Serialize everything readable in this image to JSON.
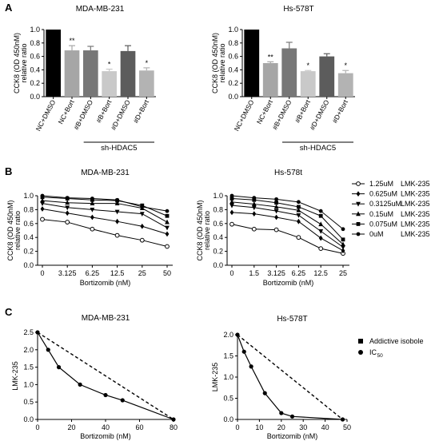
{
  "panel_letters": {
    "a": "A",
    "b": "B",
    "c": "C"
  },
  "chart_data": [
    {
      "id": "A1",
      "type": "bar",
      "title": "MDA-MB-231",
      "ylabel": "CCK8 (OD 450nM)",
      "ylabel2": "relative ratio",
      "ylim": [
        0,
        1.0
      ],
      "yticks": [
        "0.0",
        "0.2",
        "0.4",
        "0.6",
        "0.8",
        "1.0"
      ],
      "categories": [
        "NC+DMSO",
        "NC+Bort",
        "#B+DMSO",
        "#B+Bort",
        "#D+DMSO",
        "#D+Bort"
      ],
      "values": [
        1.0,
        0.69,
        0.69,
        0.38,
        0.68,
        0.39
      ],
      "errors": [
        0,
        0.07,
        0.06,
        0.03,
        0.08,
        0.04
      ],
      "significance": [
        "",
        "**",
        "",
        "*",
        "",
        "*"
      ],
      "bar_colors": [
        "#000000",
        "#a6a6a6",
        "#777777",
        "#c9c9c9",
        "#5c5c5c",
        "#b3b3b3"
      ],
      "group_label": "sh-HDAC5"
    },
    {
      "id": "A2",
      "type": "bar",
      "title": "Hs-578T",
      "ylabel": "CCK8 (OD 450nM)",
      "ylabel2": "relative ratio",
      "ylim": [
        0,
        1.0
      ],
      "yticks": [
        "0.0",
        "0.2",
        "0.4",
        "0.6",
        "0.8",
        "1.0"
      ],
      "categories": [
        "NC+DMSO",
        "NC+Bort",
        "#B+DMSO",
        "#B+Bort",
        "#D+DMSO",
        "#D+Bort"
      ],
      "values": [
        1.0,
        0.5,
        0.72,
        0.38,
        0.6,
        0.35
      ],
      "errors": [
        0,
        0.02,
        0.09,
        0.01,
        0.04,
        0.04
      ],
      "significance": [
        "",
        "**",
        "",
        "*",
        "",
        "*"
      ],
      "bar_colors": [
        "#000000",
        "#a6a6a6",
        "#777777",
        "#c9c9c9",
        "#5c5c5c",
        "#b3b3b3"
      ],
      "group_label": "sh-HDAC5"
    },
    {
      "id": "B1",
      "type": "line",
      "title": "MDA-MB-231",
      "ylabel": "CCK8 (OD 450nM)",
      "ylabel2": "relative ratio",
      "xlabel": "Bortizomib (nM)",
      "x": [
        "0",
        "3.125",
        "6.25",
        "12.5",
        "25",
        "50"
      ],
      "ylim": [
        0,
        1.0
      ],
      "yticks": [
        "0.0",
        "0.2",
        "0.4",
        "0.6",
        "0.8",
        "1.0"
      ],
      "series": [
        {
          "name": "1.25uM",
          "marker": "open-circle",
          "values": [
            0.66,
            0.62,
            0.52,
            0.43,
            0.36,
            0.27
          ]
        },
        {
          "name": "0.625uM",
          "marker": "diamond",
          "values": [
            0.81,
            0.75,
            0.69,
            0.63,
            0.56,
            0.45
          ]
        },
        {
          "name": "0.3125uM",
          "marker": "triangle-down",
          "values": [
            0.89,
            0.83,
            0.8,
            0.77,
            0.74,
            0.54
          ]
        },
        {
          "name": "0.15uM",
          "marker": "triangle-up",
          "values": [
            0.93,
            0.9,
            0.89,
            0.89,
            0.82,
            0.62
          ]
        },
        {
          "name": "0.075uM",
          "marker": "square",
          "values": [
            0.98,
            0.96,
            0.94,
            0.93,
            0.86,
            0.71
          ]
        },
        {
          "name": "0uM",
          "marker": "filled-circle",
          "values": [
            1.0,
            0.97,
            0.96,
            0.94,
            0.84,
            0.78
          ]
        }
      ]
    },
    {
      "id": "B2",
      "type": "line",
      "title": "Hs-578t",
      "ylabel": "CCK8 (OD 450nM)",
      "ylabel2": "relative ratio",
      "xlabel": "Bortizomib (nM)",
      "x": [
        "0",
        "1.5",
        "3.125",
        "6.25",
        "12.5",
        "25"
      ],
      "ylim": [
        0,
        1.0
      ],
      "yticks": [
        "0.0",
        "0.2",
        "0.4",
        "0.6",
        "0.8",
        "1.0"
      ],
      "series": [
        {
          "name": "1.25uM",
          "marker": "open-circle",
          "values": [
            0.59,
            0.52,
            0.51,
            0.4,
            0.24,
            0.17
          ]
        },
        {
          "name": "0.625uM",
          "marker": "diamond",
          "values": [
            0.76,
            0.74,
            0.69,
            0.63,
            0.39,
            0.21
          ]
        },
        {
          "name": "0.3125uM",
          "marker": "triangle-down",
          "values": [
            0.86,
            0.83,
            0.78,
            0.72,
            0.49,
            0.26
          ]
        },
        {
          "name": "0.15uM",
          "marker": "triangle-up",
          "values": [
            0.91,
            0.88,
            0.84,
            0.79,
            0.59,
            0.3
          ]
        },
        {
          "name": "0.075uM",
          "marker": "square",
          "values": [
            0.96,
            0.94,
            0.9,
            0.84,
            0.71,
            0.37
          ]
        },
        {
          "name": "0uM",
          "marker": "filled-circle",
          "values": [
            1.0,
            0.97,
            0.95,
            0.91,
            0.78,
            0.52
          ]
        }
      ]
    },
    {
      "id": "C1",
      "type": "scatter",
      "title": "MDA-MB-231",
      "ylabel": "LMK-235",
      "xlabel": "Bortizomib (nM)",
      "xlim": [
        0,
        80
      ],
      "ylim": [
        0,
        2.5
      ],
      "xticks": [
        "0",
        "20",
        "40",
        "60",
        "80"
      ],
      "yticks": [
        "0.0",
        "0.5",
        "1.0",
        "1.5",
        "2.0",
        "2.5"
      ],
      "series": [
        {
          "name": "Addictive isobole",
          "style": "dashed",
          "points": [
            [
              0,
              2.5
            ],
            [
              80,
              0
            ]
          ]
        },
        {
          "name": "IC",
          "name_sub": "50",
          "style": "solid",
          "points": [
            [
              0,
              2.5
            ],
            [
              6.25,
              2.0
            ],
            [
              12.5,
              1.5
            ],
            [
              25,
              1.0
            ],
            [
              40,
              0.7
            ],
            [
              50,
              0.55
            ],
            [
              80,
              0.0
            ]
          ]
        }
      ]
    },
    {
      "id": "C2",
      "type": "scatter",
      "title": "Hs-578T",
      "ylabel": "LMK-235",
      "xlabel": "Bortizomib (nM)",
      "xlim": [
        0,
        50
      ],
      "ylim": [
        0,
        2.0
      ],
      "xticks": [
        "0",
        "10",
        "20",
        "30",
        "40",
        "50"
      ],
      "yticks": [
        "0.0",
        "0.5",
        "1.0",
        "1.5",
        "2.0"
      ],
      "series": [
        {
          "name": "Addictive isobole",
          "style": "dashed",
          "points": [
            [
              0,
              2.0
            ],
            [
              48,
              0
            ]
          ]
        },
        {
          "name": "IC",
          "name_sub": "50",
          "style": "solid",
          "points": [
            [
              0,
              2.0
            ],
            [
              3,
              1.6
            ],
            [
              6.25,
              1.25
            ],
            [
              12.5,
              0.62
            ],
            [
              20,
              0.15
            ],
            [
              25,
              0.07
            ],
            [
              48,
              0.0
            ]
          ]
        }
      ]
    }
  ],
  "legends": {
    "B": {
      "unit_label": "LMK-235",
      "entries": [
        {
          "marker": "open-circle",
          "label": "1.25uM"
        },
        {
          "marker": "diamond",
          "label": "0.625uM"
        },
        {
          "marker": "triangle-down",
          "label": "0.3125uM"
        },
        {
          "marker": "triangle-up",
          "label": "0.15uM"
        },
        {
          "marker": "square",
          "label": "0.075uM"
        },
        {
          "marker": "filled-circle",
          "label": "0uM"
        }
      ]
    },
    "C": {
      "entries": [
        {
          "marker": "square",
          "label": "Addictive isobole"
        },
        {
          "marker": "filled-circle",
          "label": "IC",
          "sub": "50"
        }
      ]
    }
  }
}
